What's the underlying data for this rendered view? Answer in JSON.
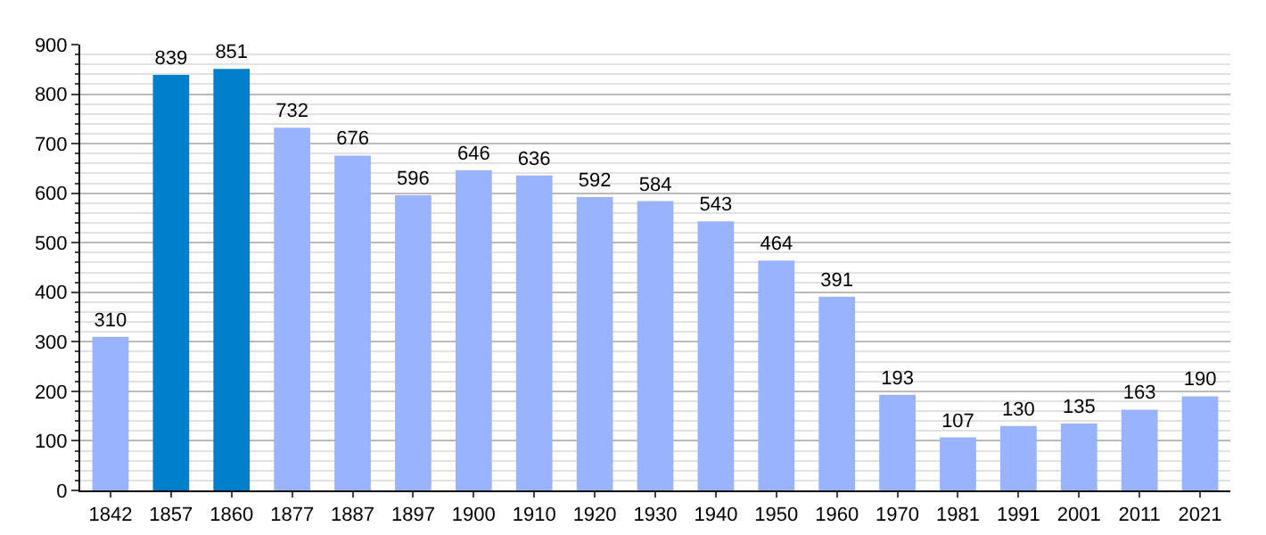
{
  "chart_data": {
    "type": "bar",
    "categories": [
      "1842",
      "1857",
      "1860",
      "1877",
      "1887",
      "1897",
      "1900",
      "1910",
      "1920",
      "1930",
      "1940",
      "1950",
      "1960",
      "1970",
      "1981",
      "1991",
      "2001",
      "2011",
      "2021"
    ],
    "values": [
      310,
      839,
      851,
      732,
      676,
      596,
      646,
      636,
      592,
      584,
      543,
      464,
      391,
      193,
      107,
      130,
      135,
      163,
      190
    ],
    "colors": [
      "#99b3ff",
      "#0080cc",
      "#0080cc",
      "#99b3ff",
      "#99b3ff",
      "#99b3ff",
      "#99b3ff",
      "#99b3ff",
      "#99b3ff",
      "#99b3ff",
      "#99b3ff",
      "#99b3ff",
      "#99b3ff",
      "#99b3ff",
      "#99b3ff",
      "#99b3ff",
      "#99b3ff",
      "#99b3ff",
      "#99b3ff"
    ],
    "ylim": [
      0,
      900
    ],
    "yticks": [
      0,
      100,
      200,
      300,
      400,
      500,
      600,
      700,
      800,
      900
    ],
    "grid": "y",
    "data_labels": true
  }
}
